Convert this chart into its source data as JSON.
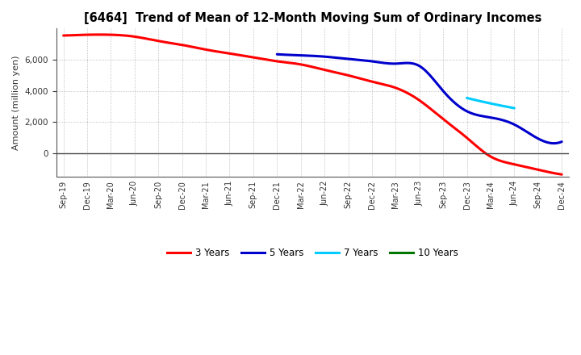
{
  "title": "[6464]  Trend of Mean of 12-Month Moving Sum of Ordinary Incomes",
  "ylabel": "Amount (million yen)",
  "ylim": [
    -1500,
    8000
  ],
  "yticks": [
    0,
    2000,
    4000,
    6000
  ],
  "background_color": "#ffffff",
  "grid_color": "#999999",
  "series": {
    "3 Years": {
      "color": "#ff0000",
      "x": [
        0,
        1,
        2,
        3,
        4,
        5,
        6,
        7,
        8,
        9,
        10,
        11,
        12,
        13,
        14,
        15,
        16,
        17,
        18,
        19,
        20,
        21
      ],
      "y": [
        7550,
        7600,
        7600,
        7480,
        7200,
        6950,
        6650,
        6400,
        6150,
        5900,
        5700,
        5350,
        5000,
        4600,
        4200,
        3400,
        2200,
        1000,
        -200,
        -700,
        -1050,
        -1350
      ]
    },
    "5 Years": {
      "color": "#0000cc",
      "x": [
        9,
        10,
        11,
        12,
        13,
        14,
        15,
        16,
        17,
        18,
        19,
        20,
        21
      ],
      "y": [
        6350,
        6280,
        6200,
        6050,
        5900,
        5750,
        5600,
        4000,
        2700,
        2300,
        1850,
        950,
        750
      ]
    },
    "7 Years": {
      "color": "#00ccff",
      "x": [
        17,
        18,
        19
      ],
      "y": [
        3550,
        3200,
        2900
      ]
    },
    "10 Years": {
      "color": "#007700",
      "x": [],
      "y": []
    }
  },
  "xtick_labels": [
    "Sep-19",
    "Dec-19",
    "Mar-20",
    "Jun-20",
    "Sep-20",
    "Dec-20",
    "Mar-21",
    "Jun-21",
    "Sep-21",
    "Dec-21",
    "Mar-22",
    "Jun-22",
    "Sep-22",
    "Dec-22",
    "Mar-23",
    "Jun-23",
    "Sep-23",
    "Dec-23",
    "Mar-24",
    "Jun-24",
    "Sep-24",
    "Dec-24"
  ],
  "legend_entries": [
    {
      "label": "3 Years",
      "color": "#ff0000"
    },
    {
      "label": "5 Years",
      "color": "#0000cc"
    },
    {
      "label": "7 Years",
      "color": "#00ccff"
    },
    {
      "label": "10 Years",
      "color": "#007700"
    }
  ]
}
